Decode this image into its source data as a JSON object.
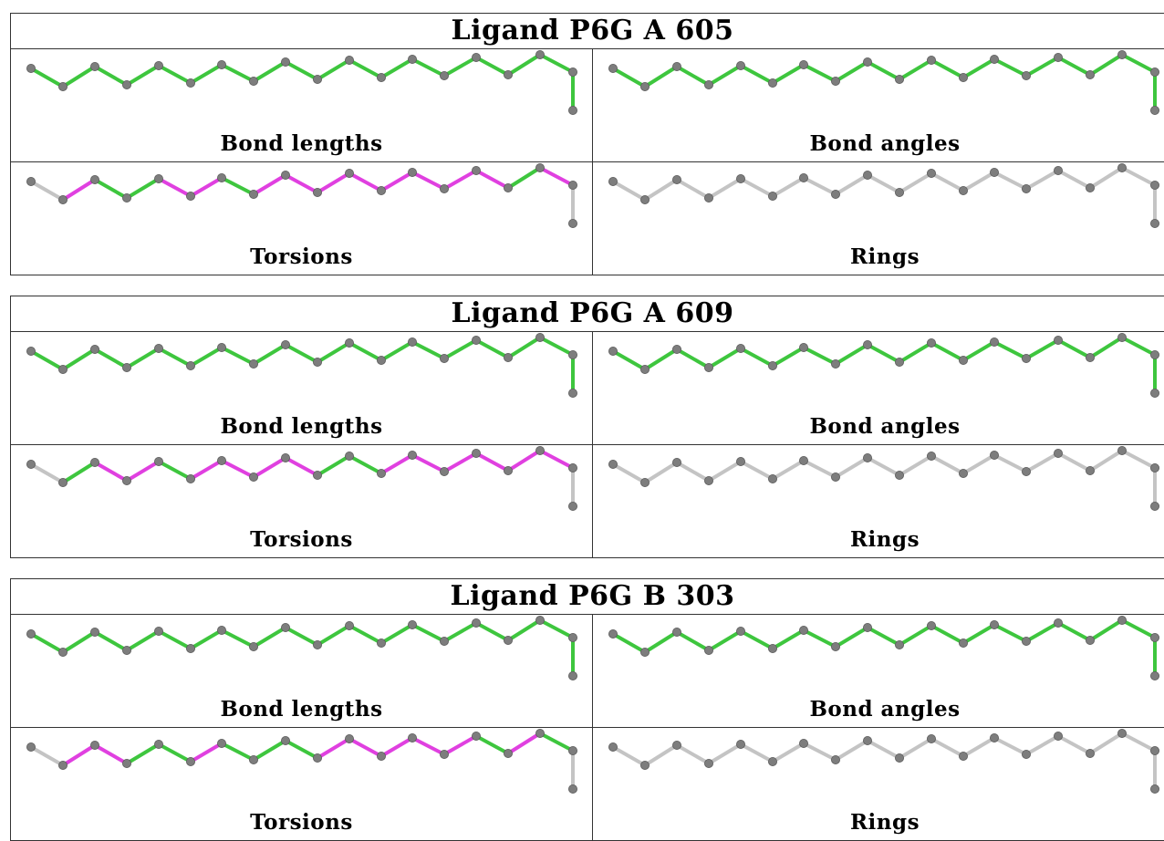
{
  "colors": {
    "ok": "#3ec63e",
    "outlier": "#e040e0",
    "neutral": "#c4c4c4",
    "atom": "#7d7d7d"
  },
  "blocks": [
    {
      "title": "Ligand P6G A 605",
      "panels": [
        {
          "label": "Bond lengths",
          "bonds": [
            "ok",
            "ok",
            "ok",
            "ok",
            "ok",
            "ok",
            "ok",
            "ok",
            "ok",
            "ok",
            "ok",
            "ok",
            "ok",
            "ok",
            "ok",
            "ok",
            "ok",
            "ok"
          ]
        },
        {
          "label": "Bond angles",
          "bonds": [
            "ok",
            "ok",
            "ok",
            "ok",
            "ok",
            "ok",
            "ok",
            "ok",
            "ok",
            "ok",
            "ok",
            "ok",
            "ok",
            "ok",
            "ok",
            "ok",
            "ok",
            "ok"
          ]
        },
        {
          "label": "Torsions",
          "bonds": [
            "neutral",
            "outlier",
            "ok",
            "ok",
            "outlier",
            "outlier",
            "ok",
            "outlier",
            "outlier",
            "outlier",
            "outlier",
            "outlier",
            "outlier",
            "outlier",
            "outlier",
            "ok",
            "outlier",
            "neutral"
          ]
        },
        {
          "label": "Rings",
          "bonds": [
            "neutral",
            "neutral",
            "neutral",
            "neutral",
            "neutral",
            "neutral",
            "neutral",
            "neutral",
            "neutral",
            "neutral",
            "neutral",
            "neutral",
            "neutral",
            "neutral",
            "neutral",
            "neutral",
            "neutral",
            "neutral"
          ]
        }
      ]
    },
    {
      "title": "Ligand P6G A 609",
      "panels": [
        {
          "label": "Bond lengths",
          "bonds": [
            "ok",
            "ok",
            "ok",
            "ok",
            "ok",
            "ok",
            "ok",
            "ok",
            "ok",
            "ok",
            "ok",
            "ok",
            "ok",
            "ok",
            "ok",
            "ok",
            "ok",
            "ok"
          ]
        },
        {
          "label": "Bond angles",
          "bonds": [
            "ok",
            "ok",
            "ok",
            "ok",
            "ok",
            "ok",
            "ok",
            "ok",
            "ok",
            "ok",
            "ok",
            "ok",
            "ok",
            "ok",
            "ok",
            "ok",
            "ok",
            "ok"
          ]
        },
        {
          "label": "Torsions",
          "bonds": [
            "neutral",
            "ok",
            "outlier",
            "outlier",
            "ok",
            "outlier",
            "outlier",
            "outlier",
            "outlier",
            "ok",
            "ok",
            "outlier",
            "outlier",
            "outlier",
            "outlier",
            "outlier",
            "outlier",
            "neutral"
          ]
        },
        {
          "label": "Rings",
          "bonds": [
            "neutral",
            "neutral",
            "neutral",
            "neutral",
            "neutral",
            "neutral",
            "neutral",
            "neutral",
            "neutral",
            "neutral",
            "neutral",
            "neutral",
            "neutral",
            "neutral",
            "neutral",
            "neutral",
            "neutral",
            "neutral"
          ]
        }
      ]
    },
    {
      "title": "Ligand P6G B 303",
      "panels": [
        {
          "label": "Bond lengths",
          "bonds": [
            "ok",
            "ok",
            "ok",
            "ok",
            "ok",
            "ok",
            "ok",
            "ok",
            "ok",
            "ok",
            "ok",
            "ok",
            "ok",
            "ok",
            "ok",
            "ok",
            "ok",
            "ok"
          ]
        },
        {
          "label": "Bond angles",
          "bonds": [
            "ok",
            "ok",
            "ok",
            "ok",
            "ok",
            "ok",
            "ok",
            "ok",
            "ok",
            "ok",
            "ok",
            "ok",
            "ok",
            "ok",
            "ok",
            "ok",
            "ok",
            "ok"
          ]
        },
        {
          "label": "Torsions",
          "bonds": [
            "neutral",
            "outlier",
            "outlier",
            "ok",
            "ok",
            "outlier",
            "ok",
            "ok",
            "ok",
            "outlier",
            "outlier",
            "outlier",
            "outlier",
            "outlier",
            "ok",
            "outlier",
            "ok",
            "neutral"
          ]
        },
        {
          "label": "Rings",
          "bonds": [
            "neutral",
            "neutral",
            "neutral",
            "neutral",
            "neutral",
            "neutral",
            "neutral",
            "neutral",
            "neutral",
            "neutral",
            "neutral",
            "neutral",
            "neutral",
            "neutral",
            "neutral",
            "neutral",
            "neutral",
            "neutral"
          ]
        }
      ]
    }
  ]
}
